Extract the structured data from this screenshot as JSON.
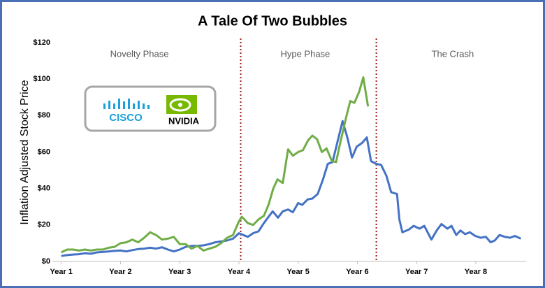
{
  "chart_data": {
    "type": "line",
    "title": "A Tale Of Two Bubbles",
    "y_label": "Inflation Adjusted Stock Price",
    "xlim": [
      0.85,
      8.85
    ],
    "xticks": [
      {
        "value": 1,
        "label": "Year 1"
      },
      {
        "value": 2,
        "label": "Year 2"
      },
      {
        "value": 3,
        "label": "Year 3"
      },
      {
        "value": 4,
        "label": "Year 4"
      },
      {
        "value": 5,
        "label": "Year 5"
      },
      {
        "value": 6,
        "label": "Year 6"
      },
      {
        "value": 7,
        "label": "Year 7"
      },
      {
        "value": 8,
        "label": "Year 8"
      }
    ],
    "ylim": [
      0,
      120
    ],
    "yticks": [
      {
        "value": 0,
        "label": "$0"
      },
      {
        "value": 20,
        "label": "$20"
      },
      {
        "value": 40,
        "label": "$40"
      },
      {
        "value": 60,
        "label": "$60"
      },
      {
        "value": 80,
        "label": "$80"
      },
      {
        "value": 100,
        "label": "$100"
      },
      {
        "value": 120,
        "label": "$120"
      }
    ],
    "grid": false,
    "phase_dividers": [
      4.03,
      6.32
    ],
    "annotations": [
      {
        "text": "Novelty Phase",
        "x": 2.32
      },
      {
        "text": "Hype Phase",
        "x": 5.12
      },
      {
        "text": "The Crash",
        "x": 7.61
      }
    ],
    "series": [
      {
        "name": "CISCO",
        "color": "#4472c4",
        "x": [
          1.0,
          1.1,
          1.2,
          1.3,
          1.4,
          1.5,
          1.6,
          1.7,
          1.8,
          1.9,
          2.0,
          2.1,
          2.2,
          2.3,
          2.4,
          2.5,
          2.6,
          2.7,
          2.8,
          2.9,
          3.0,
          3.1,
          3.2,
          3.3,
          3.4,
          3.5,
          3.6,
          3.7,
          3.8,
          3.9,
          4.0,
          4.15,
          4.24,
          4.33,
          4.42,
          4.57,
          4.66,
          4.74,
          4.83,
          4.91,
          5.0,
          5.07,
          5.16,
          5.24,
          5.33,
          5.42,
          5.5,
          5.58,
          5.66,
          5.75,
          5.83,
          5.91,
          5.99,
          6.08,
          6.16,
          6.23,
          6.32,
          6.4,
          6.49,
          6.57,
          6.67,
          6.71,
          6.76,
          6.87,
          6.95,
          7.05,
          7.13,
          7.25,
          7.34,
          7.42,
          7.52,
          7.59,
          7.67,
          7.74,
          7.82,
          7.9,
          7.99,
          8.08,
          8.17,
          8.25,
          8.32,
          8.4,
          8.49,
          8.58,
          8.66,
          8.76
        ],
        "values": [
          3,
          3.5,
          3.8,
          4,
          4.5,
          4.2,
          5,
          5.2,
          5.5,
          5.8,
          6,
          5.5,
          6.2,
          6.8,
          7,
          7.5,
          7,
          7.8,
          6.5,
          5.5,
          6.5,
          8,
          8.5,
          8.5,
          8.8,
          9.5,
          10.5,
          11,
          11.5,
          12.5,
          15.5,
          13.5,
          15.5,
          16.5,
          21,
          27.5,
          24,
          27.5,
          28.5,
          27,
          32,
          31,
          34,
          34.5,
          37,
          45,
          53.5,
          54.5,
          65,
          77,
          68,
          57,
          63,
          65,
          68,
          55,
          53.5,
          53,
          47,
          38,
          37,
          23,
          16,
          17.5,
          19.5,
          18,
          19.5,
          12,
          17,
          20.5,
          18,
          19.5,
          14.5,
          17,
          15,
          16,
          14,
          13,
          13.5,
          10.5,
          11.5,
          14.5,
          13.5,
          13,
          14,
          12.5
        ]
      },
      {
        "name": "NVIDIA",
        "color": "#70ad47",
        "x": [
          1.0,
          1.1,
          1.2,
          1.3,
          1.4,
          1.5,
          1.6,
          1.7,
          1.8,
          1.9,
          2.0,
          2.1,
          2.2,
          2.3,
          2.4,
          2.5,
          2.6,
          2.7,
          2.8,
          2.9,
          3.0,
          3.1,
          3.2,
          3.3,
          3.4,
          3.5,
          3.6,
          3.7,
          3.8,
          3.9,
          4.0,
          4.05,
          4.15,
          4.24,
          4.33,
          4.42,
          4.5,
          4.58,
          4.65,
          4.74,
          4.83,
          4.91,
          5.0,
          5.08,
          5.17,
          5.24,
          5.32,
          5.4,
          5.48,
          5.57,
          5.64,
          5.71,
          5.81,
          5.88,
          5.95,
          6.03,
          6.1,
          6.18
        ],
        "values": [
          5,
          6.5,
          6.5,
          6,
          6.5,
          6,
          6.5,
          6.5,
          7.5,
          8,
          10,
          10.5,
          12,
          10.5,
          13,
          16,
          14.5,
          12,
          12.5,
          13.5,
          9.5,
          9.5,
          7,
          8.5,
          6,
          7,
          8,
          10,
          13,
          14.5,
          22,
          24.5,
          21,
          20,
          23,
          25,
          31,
          40,
          45,
          43,
          61.5,
          58,
          60,
          61,
          66.5,
          69,
          67,
          60,
          62,
          55,
          54.5,
          65,
          79,
          88,
          87,
          93,
          101,
          85
        ]
      }
    ]
  }
}
